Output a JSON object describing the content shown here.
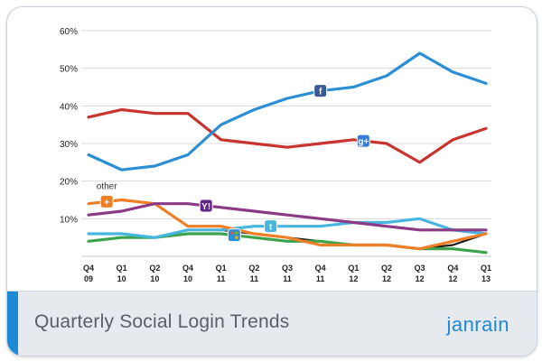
{
  "footer": {
    "title": "Quarterly Social Login Trends",
    "brand": "janrain"
  },
  "chart_data": {
    "type": "line",
    "categories": [
      [
        "Q4",
        "09"
      ],
      [
        "Q1",
        "10"
      ],
      [
        "Q2",
        "10"
      ],
      [
        "Q4",
        "10"
      ],
      [
        "Q1",
        "11"
      ],
      [
        "Q2",
        "11"
      ],
      [
        "Q3",
        "11"
      ],
      [
        "Q4",
        "11"
      ],
      [
        "Q1",
        "12"
      ],
      [
        "Q2",
        "12"
      ],
      [
        "Q3",
        "12"
      ],
      [
        "Q4",
        "12"
      ],
      [
        "Q1",
        "13"
      ]
    ],
    "ylim": [
      0,
      60
    ],
    "yticks": [
      10,
      20,
      30,
      40,
      50,
      60
    ],
    "ytick_labels": [
      "10%",
      "20%",
      "30%",
      "40%",
      "50%",
      "60%"
    ],
    "grid": true,
    "annotations": [
      {
        "text": "other",
        "series": "other"
      }
    ],
    "series": [
      {
        "id": "facebook",
        "color": "#2a8fd4",
        "icon": "facebook-icon",
        "icon_label": "f",
        "icon_bg": "#3b5a98",
        "values": [
          27,
          23,
          24,
          27,
          35,
          39,
          42,
          44,
          45,
          48,
          54,
          49,
          46
        ]
      },
      {
        "id": "google",
        "color": "#c8342f",
        "icon": "google-icon",
        "icon_label": "g+",
        "icon_bg": "#3a7bd5",
        "values": [
          37,
          39,
          38,
          38,
          31,
          30,
          29,
          30,
          31,
          30,
          25,
          31,
          34
        ]
      },
      {
        "id": "yahoo",
        "color": "#8b3a86",
        "icon": "yahoo-icon",
        "icon_label": "Y!",
        "icon_bg": "#5f2587",
        "values": [
          11,
          12,
          14,
          14,
          13,
          12,
          11,
          10,
          9,
          8,
          7,
          7,
          7
        ]
      },
      {
        "id": "other",
        "color": "#f07e26",
        "icon": "plus-icon",
        "icon_label": "+",
        "icon_bg": "#f07e26",
        "values": [
          14,
          15,
          14,
          8,
          8,
          6,
          5,
          3,
          3,
          3,
          2,
          4,
          6
        ]
      },
      {
        "id": "twitter",
        "color": "#47b6df",
        "icon": "twitter-icon",
        "icon_label": "t",
        "icon_bg": "#47b6df",
        "values": [
          6,
          6,
          5,
          7,
          7,
          8,
          8,
          8,
          9,
          9,
          10,
          7,
          6
        ]
      },
      {
        "id": "microsoft",
        "color": "#3ba34b",
        "icon": "windows-icon",
        "icon_label": "",
        "icon_bg": "#2f8fdc",
        "values": [
          4,
          5,
          5,
          6,
          6,
          5,
          4,
          4,
          3,
          3,
          2,
          2,
          1
        ]
      },
      {
        "id": "aol",
        "color": "#1b1b1b",
        "icon": "",
        "icon_label": "",
        "icon_bg": "",
        "values": [
          4,
          5,
          5,
          7,
          7,
          6,
          5,
          4,
          3,
          3,
          2,
          3,
          6
        ]
      }
    ],
    "icon_positions": {
      "facebook": 7,
      "google": 8.3,
      "yahoo": 3.55,
      "other": 0.55,
      "twitter": 5.5,
      "microsoft": 4.4
    }
  }
}
